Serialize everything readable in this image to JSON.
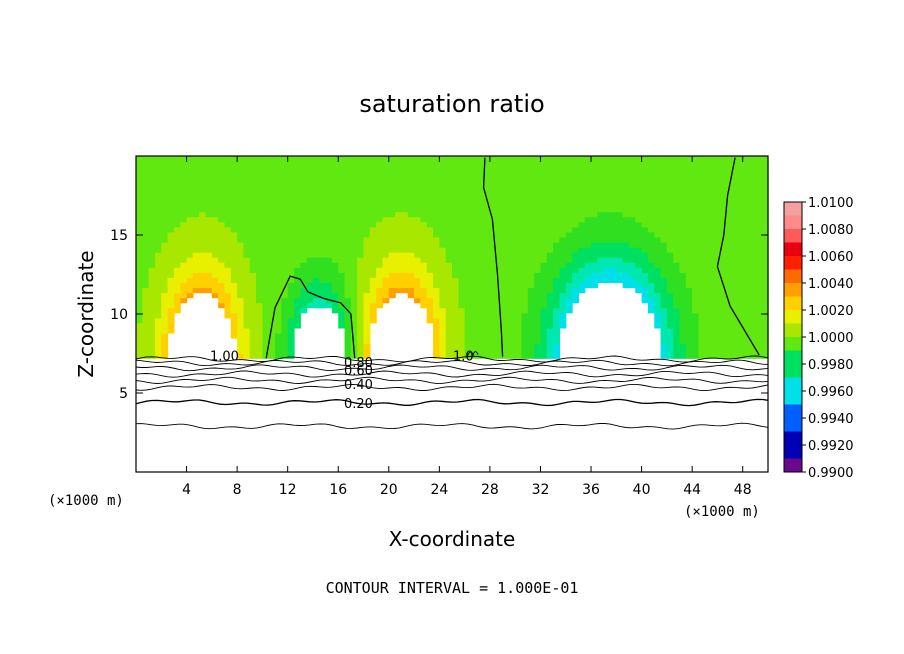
{
  "chart_data": {
    "type": "heatmap",
    "title": "saturation ratio",
    "xlabel": "X-coordinate",
    "ylabel": "Z-coordinate",
    "x_unit_left": "(×1000 m)",
    "x_unit_right": "(×1000 m)",
    "footer": "CONTOUR INTERVAL = 1.000E-01",
    "xlim": [
      0,
      50
    ],
    "ylim": [
      0,
      20
    ],
    "x_ticks": [
      4,
      8,
      12,
      16,
      20,
      24,
      28,
      32,
      36,
      40,
      44,
      48
    ],
    "y_ticks": [
      5,
      10,
      15
    ],
    "colorbar": {
      "min": 0.99,
      "max": 1.01,
      "labels": [
        "1.0100",
        "1.0080",
        "1.0060",
        "1.0040",
        "1.0020",
        "1.0000",
        "0.9980",
        "0.9960",
        "0.9940",
        "0.9920",
        "0.9900"
      ]
    },
    "fields": {
      "background": 1.0002,
      "features": [
        {
          "kind": "moist_dome",
          "center_x": 5.2,
          "width": 3.6,
          "peak_z": 11.3,
          "max_value": 1.0075
        },
        {
          "kind": "dry_dome",
          "center_x": 14.5,
          "width": 3.0,
          "peak_z": 10.5,
          "min_value": 0.9945
        },
        {
          "kind": "moist_dome",
          "center_x": 21.0,
          "width": 3.6,
          "peak_z": 11.3,
          "max_value": 1.0075
        },
        {
          "kind": "dry_dome",
          "center_x": 37.5,
          "width": 5.5,
          "peak_z": 12.0,
          "min_value": 0.9902
        }
      ],
      "cloud_base_z": 7.2
    },
    "contours": [
      {
        "label": "1.00",
        "x": 7,
        "z": 7.3
      },
      {
        "label": "0.80",
        "x": 17.6,
        "z": 6.9
      },
      {
        "label": "0.60",
        "x": 17.6,
        "z": 6.4
      },
      {
        "label": "0.40",
        "x": 17.6,
        "z": 5.5
      },
      {
        "label": "0.20",
        "x": 17.6,
        "z": 4.3
      },
      {
        "label": "1.0",
        "x": 25.9,
        "z": 7.3
      }
    ]
  }
}
